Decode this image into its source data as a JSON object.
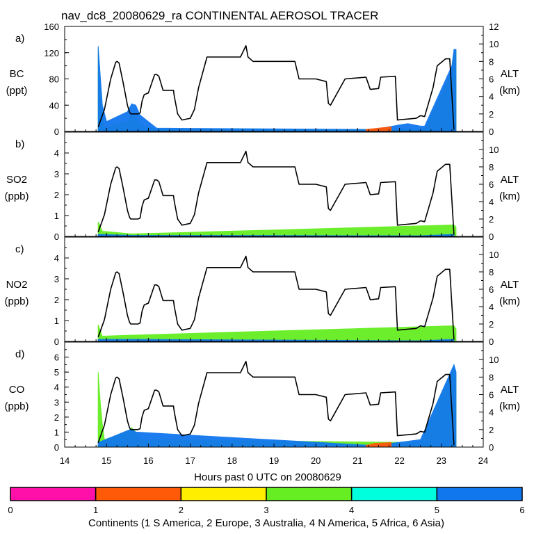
{
  "title": "nav_dc8_20080629_ra CONTINENTAL AEROSOL TRACER",
  "xlabel": "Hours past 0 UTC on 20080629",
  "colorbar": {
    "label": "Continents (1 S America, 2 Europe, 3 Australia, 4 N America, 5 Africa, 6 Asia)",
    "ticks": [
      "0",
      "1",
      "2",
      "3",
      "4",
      "5",
      "6"
    ],
    "colors": [
      "#ff10a8",
      "#ff5a08",
      "#ffee00",
      "#66ee22",
      "#00ffdd",
      "#1177ee"
    ]
  },
  "chart_data": [
    {
      "panel": "a)",
      "type": "area",
      "ylabel": "BC",
      "yunits": "(ppt)",
      "xlim": [
        14,
        24
      ],
      "xticks": [
        "14",
        "15",
        "16",
        "17",
        "18",
        "19",
        "20",
        "21",
        "22",
        "23",
        "24"
      ],
      "ylim": [
        0,
        160
      ],
      "yticks": [
        "0",
        "40",
        "80",
        "120",
        "160"
      ],
      "y2label": "ALT",
      "y2units": "(km)",
      "y2lim": [
        0,
        12
      ],
      "y2ticks": [
        "0",
        "2",
        "4",
        "6",
        "8",
        "10",
        "12"
      ],
      "series": [
        {
          "name": "N America",
          "color": "#66ee22",
          "x": [
            14.8,
            14.85,
            14.9,
            14.95,
            15.5,
            15.6,
            15.7,
            15.8,
            16.1,
            16.2,
            22.5,
            22.6,
            23.25,
            23.3,
            23.35
          ],
          "values": [
            126,
            65,
            20,
            5,
            15,
            25,
            22,
            10,
            5,
            3,
            3,
            4,
            90,
            120,
            122
          ]
        },
        {
          "name": "Asia",
          "color": "#1177ee",
          "x": [
            14.8,
            14.9,
            15.0,
            15.5,
            15.6,
            15.7,
            15.8,
            16.1,
            16.2,
            21.4,
            22.0,
            22.2,
            22.5,
            22.6,
            23.25,
            23.3,
            23.35
          ],
          "values": [
            130,
            40,
            15,
            30,
            42,
            40,
            25,
            10,
            5,
            3,
            10,
            12,
            8,
            8,
            100,
            125,
            125
          ]
        },
        {
          "name": "Europe",
          "color": "#ff5a08",
          "x": [
            21.2,
            21.5,
            21.8
          ],
          "values": [
            3,
            5,
            7
          ]
        }
      ]
    },
    {
      "panel": "b)",
      "type": "area",
      "ylabel": "SO2",
      "yunits": "(ppb)",
      "xlim": [
        14,
        24
      ],
      "xticks": [
        "14",
        "15",
        "16",
        "17",
        "18",
        "19",
        "20",
        "21",
        "22",
        "23",
        "24"
      ],
      "ylim": [
        0,
        5
      ],
      "yticks": [
        "0",
        "1",
        "2",
        "3",
        "4"
      ],
      "y2label": "ALT",
      "y2units": "(km)",
      "y2lim": [
        0,
        12
      ],
      "y2ticks": [
        "0",
        "2",
        "4",
        "6",
        "8",
        "10"
      ],
      "series": [
        {
          "name": "N America",
          "color": "#66ee22",
          "x": [
            14.8,
            14.9,
            15.6,
            23.3,
            23.35
          ],
          "values": [
            0.7,
            0.25,
            0.12,
            0.55,
            0.45
          ]
        },
        {
          "name": "Asia",
          "color": "#1177ee",
          "x": [
            14.8,
            15.6,
            22.5,
            23.3
          ],
          "values": [
            0.1,
            0.05,
            0.03,
            0.1
          ]
        }
      ]
    },
    {
      "panel": "c)",
      "type": "area",
      "ylabel": "NO2",
      "yunits": "(ppb)",
      "xlim": [
        14,
        24
      ],
      "xticks": [
        "14",
        "15",
        "16",
        "17",
        "18",
        "19",
        "20",
        "21",
        "22",
        "23",
        "24"
      ],
      "ylim": [
        0,
        5
      ],
      "yticks": [
        "0",
        "1",
        "2",
        "3",
        "4"
      ],
      "y2label": "ALT",
      "y2units": "(km)",
      "y2lim": [
        0,
        12
      ],
      "y2ticks": [
        "0",
        "2",
        "4",
        "6",
        "8",
        "10"
      ],
      "series": [
        {
          "name": "N America",
          "color": "#66ee22",
          "x": [
            14.8,
            14.9,
            15.6,
            23.3,
            23.35
          ],
          "values": [
            0.8,
            0.25,
            0.3,
            0.75,
            0.6
          ]
        },
        {
          "name": "Asia",
          "color": "#1177ee",
          "x": [
            14.8,
            15.6,
            22.5,
            23.3
          ],
          "values": [
            0.1,
            0.1,
            0.03,
            0.1
          ]
        }
      ]
    },
    {
      "panel": "d)",
      "type": "area",
      "ylabel": "CO",
      "yunits": "(ppb)",
      "xlim": [
        14,
        24
      ],
      "xticks": [
        "14",
        "15",
        "16",
        "17",
        "18",
        "19",
        "20",
        "21",
        "22",
        "23",
        "24"
      ],
      "ylim": [
        0,
        7
      ],
      "yticks": [
        "0",
        "1",
        "2",
        "3",
        "4",
        "5",
        "6"
      ],
      "y2label": "ALT",
      "y2units": "(km)",
      "y2lim": [
        0,
        12
      ],
      "y2ticks": [
        "0",
        "2",
        "4",
        "6",
        "8",
        "10"
      ],
      "series": [
        {
          "name": "N America",
          "color": "#66ee22",
          "x": [
            14.8,
            14.85,
            14.9,
            14.95,
            15.5,
            15.6,
            15.7,
            15.8,
            22.5,
            23.3,
            23.35
          ],
          "values": [
            5.0,
            3.0,
            1.5,
            0.5,
            1.0,
            1.3,
            1.0,
            0.5,
            0.3,
            5.3,
            4.8
          ]
        },
        {
          "name": "Asia",
          "color": "#1177ee",
          "x": [
            14.8,
            15.5,
            15.6,
            15.7,
            21.4,
            22.5,
            23.3,
            23.35
          ],
          "values": [
            0.3,
            1.1,
            1.2,
            1.0,
            0.1,
            0.5,
            5.5,
            5.0
          ]
        },
        {
          "name": "Europe",
          "color": "#ff5a08",
          "x": [
            21.2,
            21.4,
            21.8
          ],
          "values": [
            0.1,
            0.25,
            0.3
          ]
        }
      ]
    }
  ],
  "altitude_km": {
    "x": [
      14.8,
      14.95,
      15.1,
      15.22,
      15.25,
      15.3,
      15.4,
      15.5,
      15.55,
      15.58,
      15.75,
      15.8,
      15.85,
      15.9,
      16.0,
      16.1,
      16.15,
      16.2,
      16.25,
      16.35,
      16.6,
      16.62,
      16.7,
      16.8,
      17.0,
      17.1,
      17.2,
      17.4,
      17.6,
      17.9,
      18.2,
      18.3,
      18.33,
      18.38,
      18.5,
      18.8,
      19.5,
      19.6,
      20.0,
      20.25,
      20.3,
      20.35,
      20.7,
      21.2,
      21.3,
      21.5,
      21.55,
      21.9,
      21.95,
      22.4,
      22.5,
      22.6,
      22.8,
      22.9,
      23.1,
      23.2,
      23.3
    ],
    "alt": [
      0.5,
      2.5,
      6.0,
      7.9,
      8.0,
      7.8,
      5.5,
      3.0,
      2.2,
      2.0,
      2.0,
      2.1,
      3.5,
      4.2,
      4.4,
      5.8,
      6.5,
      6.5,
      6.3,
      4.7,
      4.7,
      4.0,
      2.0,
      1.3,
      1.5,
      2.5,
      5.0,
      8.5,
      8.5,
      8.5,
      8.5,
      9.5,
      9.8,
      8.5,
      8.0,
      8.0,
      8.0,
      6.0,
      6.0,
      5.7,
      3.2,
      3.0,
      6.0,
      6.2,
      4.8,
      4.9,
      6.2,
      6.3,
      1.3,
      1.5,
      1.8,
      1.7,
      5.0,
      7.5,
      8.3,
      8.3,
      0.2
    ]
  }
}
